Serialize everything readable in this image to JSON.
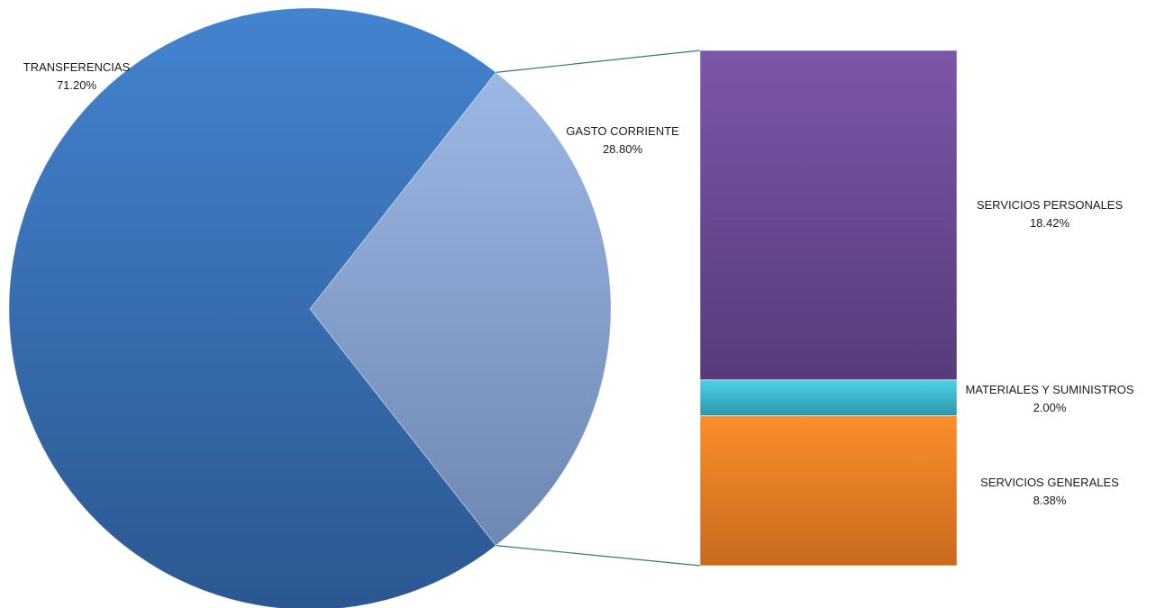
{
  "chart_data": {
    "type": "pie",
    "subtype": "bar-of-pie",
    "slices": [
      {
        "label": "TRANSFERENCIAS",
        "value": 71.2,
        "value_label": "71.20%",
        "color": "#3A78C0"
      },
      {
        "label": "GASTO CORRIENTE",
        "value": 28.8,
        "value_label": "28.80%",
        "color": "#8DA9DA"
      }
    ],
    "breakdown_of": "GASTO CORRIENTE",
    "stack": [
      {
        "label": "SERVICIOS PERSONALES",
        "value": 18.42,
        "value_label": "18.42%",
        "color": "#6A4A94"
      },
      {
        "label": "MATERIALES Y SUMINISTROS",
        "value": 2.0,
        "value_label": "2.00%",
        "color": "#36B3CC"
      },
      {
        "label": "SERVICIOS GENERALES",
        "value": 8.38,
        "value_label": "8.38%",
        "color": "#F08625"
      }
    ],
    "connector_color": "#2E7B77"
  }
}
